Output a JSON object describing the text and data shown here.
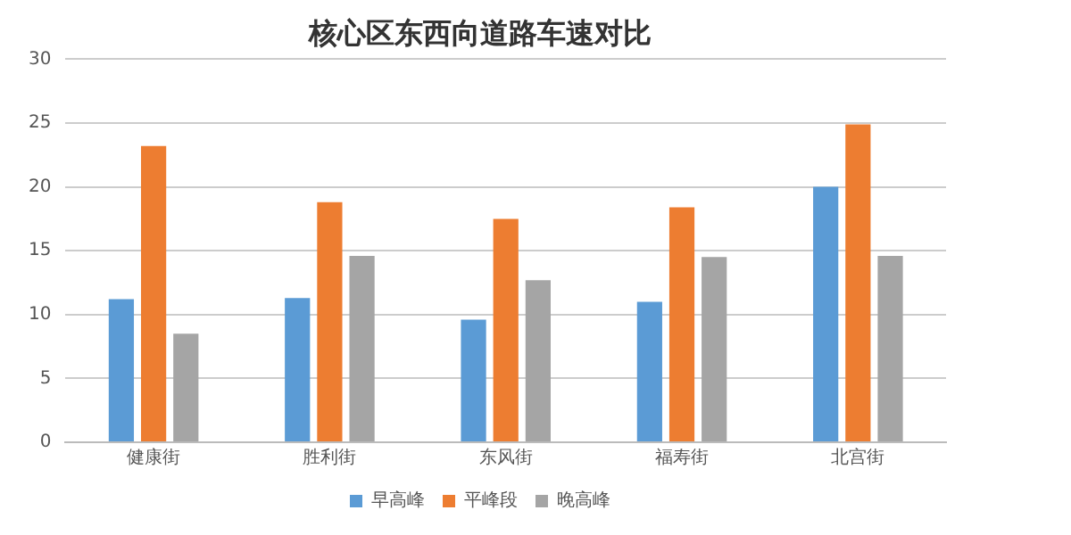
{
  "chart_data": {
    "type": "bar",
    "title": "核心区东西向道路车速对比",
    "categories": [
      "健康街",
      "胜利街",
      "东风街",
      "福寿街",
      "北宫街"
    ],
    "series": [
      {
        "name": "早高峰",
        "color": "#5b9bd5",
        "values": [
          11.2,
          11.3,
          9.6,
          11.0,
          20.0
        ]
      },
      {
        "name": "平峰段",
        "color": "#ed7d31",
        "values": [
          23.2,
          18.8,
          17.5,
          18.4,
          24.9
        ]
      },
      {
        "name": "晚高峰",
        "color": "#a5a5a5",
        "values": [
          8.5,
          14.6,
          12.7,
          14.5,
          14.6
        ]
      }
    ],
    "ylim": [
      0,
      30
    ],
    "yticks": [
      0,
      5,
      10,
      15,
      20,
      25,
      30
    ],
    "grid": "y",
    "legend": "bottom"
  }
}
